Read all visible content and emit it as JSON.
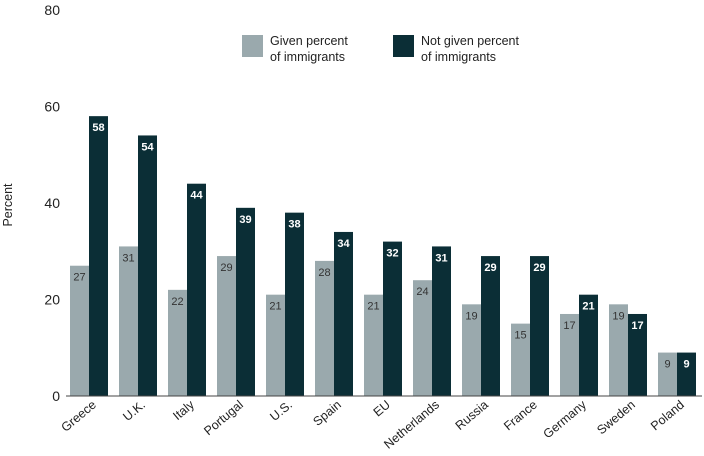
{
  "chart_data": {
    "type": "bar",
    "ylabel": "Percent",
    "ylim": [
      0,
      80
    ],
    "yticks": [
      0,
      20,
      40,
      60,
      80
    ],
    "grid": false,
    "legend_position": "top",
    "categories": [
      "Greece",
      "U.K.",
      "Italy",
      "Portugal",
      "U.S.",
      "Spain",
      "EU",
      "Netherlands",
      "Russia",
      "France",
      "Germany",
      "Sweden",
      "Poland"
    ],
    "series": [
      {
        "name": "Given percent of immigrants",
        "legend_lines": [
          "Given percent",
          "of immigrants"
        ],
        "color": "#9aa9ad",
        "values": [
          27,
          31,
          22,
          29,
          21,
          28,
          21,
          24,
          19,
          15,
          17,
          19,
          9
        ]
      },
      {
        "name": "Not given percent of immigrants",
        "legend_lines": [
          "Not given percent",
          "of immigrants"
        ],
        "color": "#0b2e36",
        "values": [
          58,
          54,
          44,
          39,
          38,
          34,
          32,
          31,
          29,
          29,
          21,
          17,
          9
        ]
      }
    ]
  }
}
